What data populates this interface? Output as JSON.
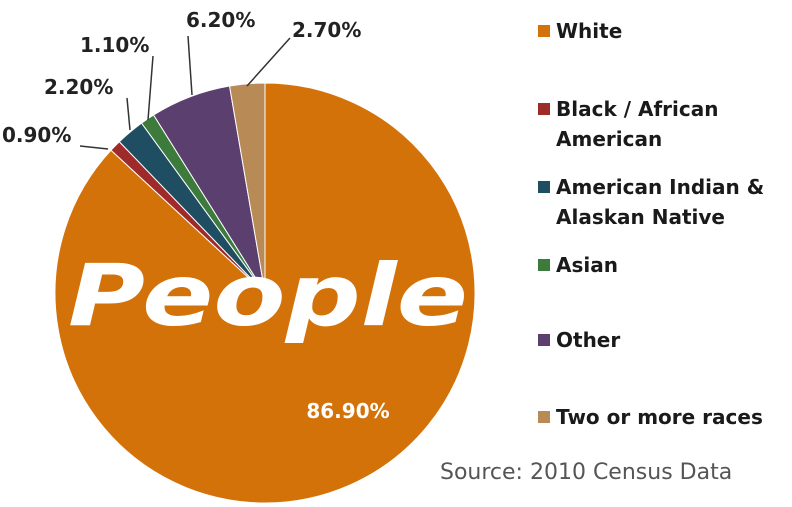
{
  "chart_data": {
    "type": "pie",
    "title": "",
    "categories": [
      "White",
      "Black / African American",
      "American Indian & Alaskan Native",
      "Asian",
      "Other",
      "Two or more races"
    ],
    "values": [
      86.9,
      0.9,
      2.2,
      1.1,
      6.2,
      2.7
    ],
    "data_labels": [
      "86.90%",
      "0.90%",
      "2.20%",
      "1.10%",
      "6.20%",
      "2.70%"
    ],
    "colors": [
      "#D4720A",
      "#9E2A2A",
      "#1F4E63",
      "#3C7B3C",
      "#5B3F6E",
      "#B88A55"
    ],
    "legend_position": "right",
    "watermark": "People"
  },
  "legend": {
    "items": [
      {
        "label": "White"
      },
      {
        "label": "Black / African American"
      },
      {
        "label": "American Indian & Alaskan Native"
      },
      {
        "label": "Asian"
      },
      {
        "label": "Other"
      },
      {
        "label": "Two or more races"
      }
    ]
  },
  "source": "Source: 2010 Census Data"
}
